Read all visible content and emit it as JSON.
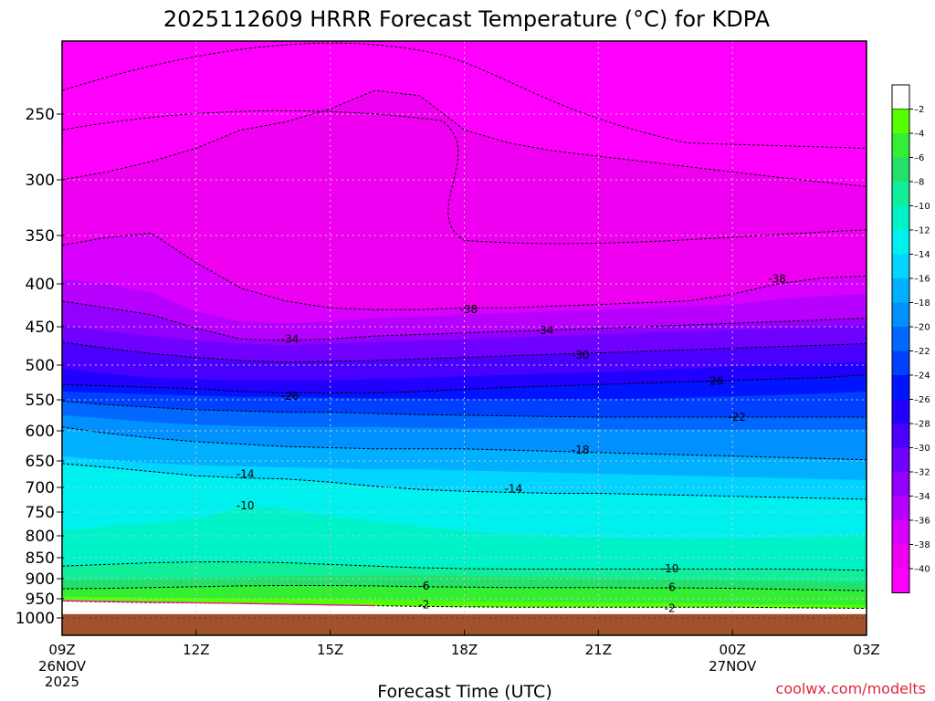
{
  "chart_data": {
    "type": "heatmap",
    "title": "2025112609 HRRR Forecast Temperature (°C) for KDPA",
    "xlabel": "Forecast Time (UTC)",
    "ylabel": "",
    "x_ticks": [
      "09Z",
      "12Z",
      "15Z",
      "18Z",
      "21Z",
      "00Z",
      "03Z"
    ],
    "x_tick_dates": [
      {
        "tick": "09Z",
        "lines": [
          "26NOV",
          "2025"
        ]
      },
      {
        "tick": "00Z",
        "lines": [
          "27NOV"
        ]
      }
    ],
    "x_hours": [
      0,
      3,
      6,
      9,
      12,
      15,
      18
    ],
    "y_ticks": [
      250,
      300,
      350,
      400,
      450,
      500,
      550,
      600,
      650,
      700,
      750,
      800,
      850,
      900,
      950,
      1000
    ],
    "ylim": [
      1040,
      200
    ],
    "colorbar_levels": [
      -2,
      -4,
      -6,
      -8,
      -10,
      -12,
      -14,
      -16,
      -18,
      -20,
      -22,
      -24,
      -26,
      -28,
      -30,
      -32,
      -34,
      -36,
      -38,
      -40
    ],
    "colorbar_colors": [
      "#ffffff",
      "#55ff00",
      "#33ee33",
      "#22e06a",
      "#11ee99",
      "#00f2c8",
      "#00f0f0",
      "#00d4ff",
      "#00b0ff",
      "#0090ff",
      "#0068ff",
      "#0040ff",
      "#0014ff",
      "#2200ff",
      "#4a00ff",
      "#7000ff",
      "#9400ff",
      "#b800ff",
      "#d800ff",
      "#f000f0",
      "#ff00ff"
    ],
    "surface_color": "#a0522d",
    "contour_labels": [
      {
        "text": "-38",
        "x_hour": 9.1,
        "p": 430
      },
      {
        "text": "-38",
        "x_hour": 16.0,
        "p": 395
      },
      {
        "text": "-34",
        "x_hour": 5.1,
        "p": 466
      },
      {
        "text": "-34",
        "x_hour": 10.8,
        "p": 455
      },
      {
        "text": "-30",
        "x_hour": 11.6,
        "p": 487
      },
      {
        "text": "-26",
        "x_hour": 5.1,
        "p": 545
      },
      {
        "text": "-26",
        "x_hour": 14.6,
        "p": 523
      },
      {
        "text": "-22",
        "x_hour": 15.1,
        "p": 578
      },
      {
        "text": "-18",
        "x_hour": 11.6,
        "p": 632
      },
      {
        "text": "-14",
        "x_hour": 4.1,
        "p": 675
      },
      {
        "text": "-14",
        "x_hour": 10.1,
        "p": 703
      },
      {
        "text": "-10",
        "x_hour": 4.1,
        "p": 737
      },
      {
        "text": "-10",
        "x_hour": 13.6,
        "p": 876
      },
      {
        "text": "-6",
        "x_hour": 8.1,
        "p": 918
      },
      {
        "text": "-6",
        "x_hour": 13.6,
        "p": 922
      },
      {
        "text": "-2",
        "x_hour": 8.1,
        "p": 965
      },
      {
        "text": "-2",
        "x_hour": 13.6,
        "p": 975
      }
    ]
  },
  "credit": "coolwx.com/modelts"
}
